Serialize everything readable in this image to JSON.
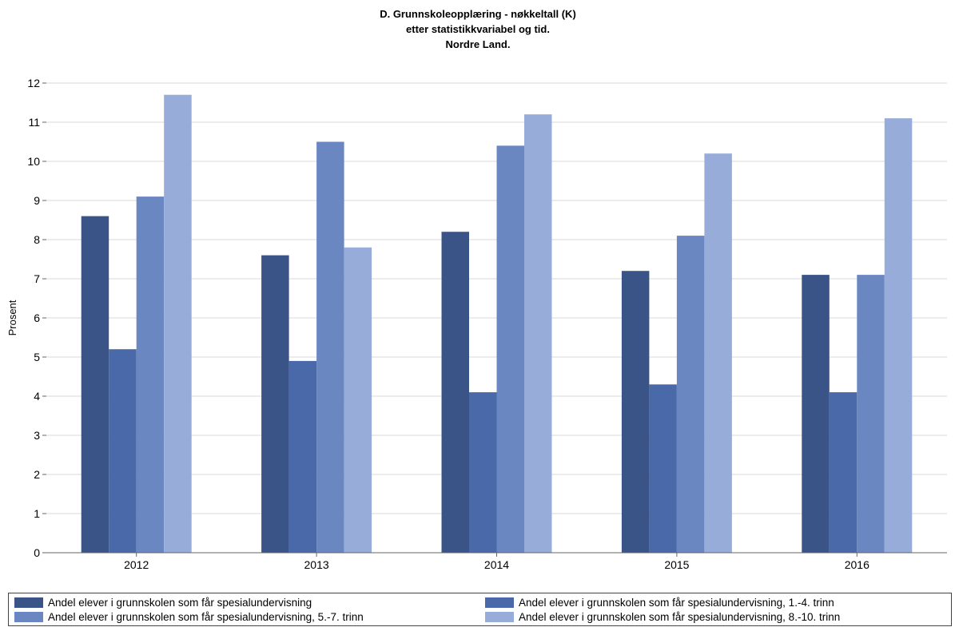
{
  "chart_data": {
    "type": "bar",
    "title": "D. Grunnskoleopplæring - nøkkeltall (K)",
    "subtitle": "etter statistikkvariabel og tid.",
    "subtitle2": "Nordre Land.",
    "ylabel": "Prosent",
    "xlabel": "",
    "ylim": [
      0,
      12
    ],
    "yticks": [
      "0",
      "1",
      "2",
      "3",
      "4",
      "5",
      "6",
      "7",
      "8",
      "9",
      "10",
      "11",
      "12"
    ],
    "grid": true,
    "legend_position": "bottom",
    "categories": [
      "2012",
      "2013",
      "2014",
      "2015",
      "2016"
    ],
    "series": [
      {
        "name": "Andel elever i grunnskolen som får spesialundervisning",
        "color": "#3b5487",
        "values": [
          8.6,
          7.6,
          8.2,
          7.2,
          7.1
        ]
      },
      {
        "name": "Andel elever i grunnskolen som får spesialundervisning, 1.-4. trinn",
        "color": "#4a69a8",
        "values": [
          5.2,
          4.9,
          4.1,
          4.3,
          4.1
        ]
      },
      {
        "name": "Andel elever i grunnskolen som får spesialundervisning, 5.-7. trinn",
        "color": "#6a87c2",
        "values": [
          9.1,
          10.5,
          10.4,
          8.1,
          7.1
        ]
      },
      {
        "name": "Andel elever i grunnskolen som får spesialundervisning, 8.-10. trinn",
        "color": "#98acd9",
        "values": [
          11.7,
          7.8,
          11.2,
          10.2,
          11.1
        ]
      }
    ]
  }
}
